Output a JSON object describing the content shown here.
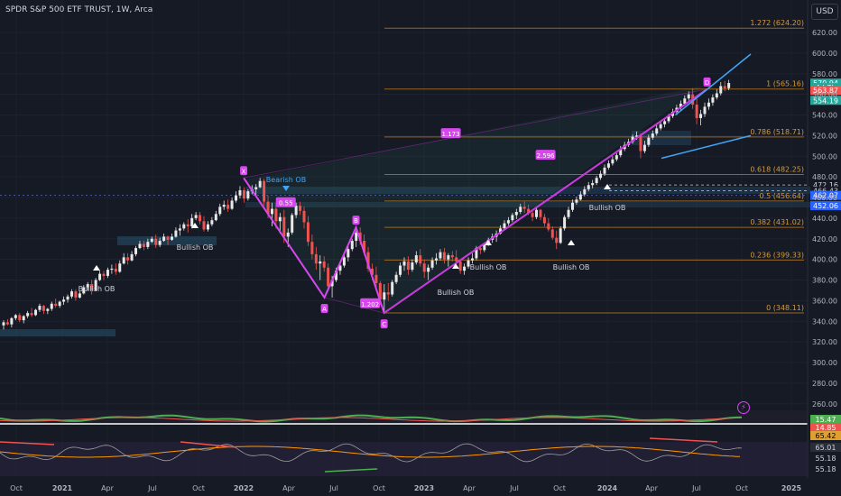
{
  "header": {
    "symbol_title": "SPDR S&P 500 ETF TRUST, 1W, Arca",
    "currency_button": "USD"
  },
  "chart_data": {
    "type": "candlestick",
    "title": "SPDR S&P 500 ETF TRUST, 1W, Arca",
    "price_axis": {
      "ticks": [
        620,
        600,
        580,
        560,
        540,
        520,
        500,
        480,
        460,
        440,
        420,
        400,
        380,
        360,
        340,
        320,
        300,
        280,
        260
      ],
      "tick_labels": [
        "620.00",
        "600.00",
        "580.00",
        "560.00",
        "540.00",
        "520.00",
        "500.00",
        "480.00",
        "460.00",
        "440.00",
        "420.00",
        "400.00",
        "380.00",
        "360.00",
        "340.00",
        "320.00",
        "300.00",
        "280.00",
        "260.00"
      ],
      "ylim": [
        250,
        637
      ]
    },
    "time_axis": {
      "labels": [
        "Oct",
        "2021",
        "Apr",
        "Jul",
        "Oct",
        "2022",
        "Apr",
        "Jul",
        "Oct",
        "2023",
        "Apr",
        "Jul",
        "Oct",
        "2024",
        "Apr",
        "Jul",
        "Oct",
        "2025"
      ],
      "bold_labels": [
        "2021",
        "2022",
        "2023",
        "2024",
        "2025"
      ]
    },
    "fib_levels": [
      {
        "label": "1.272 (624.20)",
        "value": 624.2
      },
      {
        "label": "1 (565.16)",
        "value": 565.16
      },
      {
        "label": "0.786 (518.71)",
        "value": 518.71
      },
      {
        "label": "0.618 (482.25)",
        "value": 482.25
      },
      {
        "label": "0.5 (456.64)",
        "value": 456.64
      },
      {
        "label": "0.382 (431.02)",
        "value": 431.02
      },
      {
        "label": "0.236 (399.33)",
        "value": 399.33
      },
      {
        "label": "0 (348.11)",
        "value": 348.11
      }
    ],
    "price_badges": [
      {
        "label": "570.94",
        "value": 570.94,
        "color": "#26a69a"
      },
      {
        "label": "4d 7h",
        "value": 566.5,
        "color": "#26a69a"
      },
      {
        "label": "563.87",
        "value": 563.87,
        "color": "#ef5350"
      },
      {
        "label": "554.19",
        "value": 554.19,
        "color": "#26a69a"
      },
      {
        "label": "472.16",
        "value": 472.16,
        "color": "#161a25"
      },
      {
        "label": "466.43",
        "value": 466.43,
        "color": "#161a25"
      },
      {
        "label": "462.07",
        "value": 462.07,
        "color": "#2962ff"
      },
      {
        "label": "452.06",
        "value": 452.06,
        "color": "#2962ff"
      }
    ],
    "harmonic_pattern": {
      "points": [
        {
          "label": "X",
          "date": "2022-01-03",
          "value": 479
        },
        {
          "label": "A",
          "date": "2022-06-13",
          "value": 363
        },
        {
          "label": "B",
          "date": "2022-08-15",
          "value": 431
        },
        {
          "label": "C",
          "date": "2022-10-10",
          "value": 348
        },
        {
          "label": "D",
          "date": "2024-07-15",
          "value": 565
        }
      ],
      "ratios": [
        {
          "label": "0.55",
          "date": "2022-03-28",
          "value": 455
        },
        {
          "label": "1.202",
          "date": "2022-09-12",
          "value": 357
        },
        {
          "label": "1.173",
          "date": "2023-02-20",
          "value": 522
        },
        {
          "label": "2.596",
          "date": "2023-08-28",
          "value": 501
        }
      ]
    },
    "annotations": {
      "bullish_ob": [
        "Bullish OB",
        "Bullish OB",
        "Bullish OB",
        "Bullish OB",
        "Bullish OB",
        "Bullish OB",
        "Bullish OB"
      ],
      "bearish_ob": "Bearish OB"
    },
    "candles": [
      [
        0,
        336,
        341,
        332,
        339
      ],
      [
        1,
        339,
        342,
        336,
        337
      ],
      [
        2,
        337,
        344,
        334,
        343
      ],
      [
        3,
        343,
        347,
        341,
        346
      ],
      [
        4,
        346,
        348,
        339,
        341
      ],
      [
        5,
        341,
        346,
        338,
        345
      ],
      [
        6,
        345,
        350,
        343,
        348
      ],
      [
        7,
        348,
        353,
        344,
        346
      ],
      [
        8,
        346,
        352,
        345,
        351
      ],
      [
        9,
        351,
        357,
        349,
        355
      ],
      [
        10,
        355,
        356,
        347,
        350
      ],
      [
        11,
        350,
        353,
        347,
        352
      ],
      [
        12,
        352,
        359,
        350,
        357
      ],
      [
        13,
        357,
        362,
        353,
        355
      ],
      [
        14,
        355,
        360,
        353,
        359
      ],
      [
        15,
        359,
        364,
        356,
        361
      ],
      [
        16,
        361,
        366,
        358,
        364
      ],
      [
        17,
        364,
        371,
        362,
        369
      ],
      [
        18,
        369,
        371,
        360,
        363
      ],
      [
        19,
        363,
        369,
        362,
        367
      ],
      [
        20,
        367,
        375,
        366,
        373
      ],
      [
        21,
        373,
        378,
        370,
        376
      ],
      [
        22,
        376,
        380,
        366,
        370
      ],
      [
        23,
        370,
        382,
        369,
        380
      ],
      [
        24,
        380,
        389,
        379,
        386
      ],
      [
        25,
        386,
        389,
        380,
        384
      ],
      [
        26,
        384,
        392,
        382,
        390
      ],
      [
        27,
        390,
        395,
        386,
        391
      ],
      [
        28,
        391,
        396,
        385,
        388
      ],
      [
        29,
        388,
        399,
        387,
        396
      ],
      [
        30,
        396,
        406,
        395,
        402
      ],
      [
        31,
        402,
        406,
        395,
        399
      ],
      [
        32,
        399,
        408,
        398,
        405
      ],
      [
        33,
        405,
        413,
        403,
        411
      ],
      [
        34,
        411,
        418,
        410,
        415
      ],
      [
        35,
        415,
        418,
        409,
        412
      ],
      [
        36,
        412,
        420,
        410,
        417
      ],
      [
        37,
        417,
        422,
        416,
        420
      ],
      [
        38,
        420,
        424,
        411,
        414
      ],
      [
        39,
        414,
        421,
        412,
        418
      ],
      [
        40,
        418,
        425,
        417,
        422
      ],
      [
        41,
        422,
        423,
        414,
        419
      ],
      [
        42,
        419,
        425,
        418,
        422
      ],
      [
        43,
        422,
        431,
        421,
        428
      ],
      [
        44,
        428,
        434,
        423,
        430
      ],
      [
        45,
        430,
        436,
        428,
        434
      ],
      [
        46,
        434,
        439,
        426,
        432
      ],
      [
        47,
        432,
        444,
        430,
        440
      ],
      [
        48,
        440,
        446,
        438,
        443
      ],
      [
        49,
        443,
        446,
        434,
        437
      ],
      [
        50,
        437,
        442,
        427,
        429
      ],
      [
        51,
        429,
        437,
        427,
        434
      ],
      [
        52,
        434,
        441,
        432,
        438
      ],
      [
        53,
        438,
        447,
        437,
        444
      ],
      [
        54,
        444,
        454,
        442,
        451
      ],
      [
        55,
        451,
        457,
        448,
        453
      ],
      [
        56,
        453,
        458,
        446,
        449
      ],
      [
        57,
        449,
        460,
        448,
        457
      ],
      [
        58,
        457,
        466,
        455,
        462
      ],
      [
        59,
        462,
        471,
        459,
        467
      ],
      [
        60,
        467,
        470,
        455,
        459
      ],
      [
        61,
        459,
        468,
        457,
        466
      ],
      [
        62,
        466,
        472,
        463,
        468
      ],
      [
        63,
        468,
        473,
        462,
        470
      ],
      [
        64,
        470,
        479,
        469,
        476
      ],
      [
        65,
        476,
        478,
        452,
        456
      ],
      [
        66,
        456,
        462,
        440,
        444
      ],
      [
        67,
        444,
        455,
        432,
        449
      ],
      [
        68,
        449,
        455,
        430,
        437
      ],
      [
        69,
        437,
        445,
        425,
        441
      ],
      [
        70,
        441,
        448,
        416,
        422
      ],
      [
        71,
        422,
        430,
        412,
        426
      ],
      [
        72,
        426,
        445,
        424,
        443
      ],
      [
        73,
        443,
        455,
        440,
        452
      ],
      [
        74,
        452,
        456,
        443,
        447
      ],
      [
        75,
        447,
        451,
        430,
        436
      ],
      [
        76,
        436,
        442,
        413,
        417
      ],
      [
        77,
        417,
        424,
        400,
        405
      ],
      [
        78,
        405,
        412,
        390,
        396
      ],
      [
        79,
        396,
        404,
        380,
        398
      ],
      [
        80,
        398,
        403,
        388,
        392
      ],
      [
        81,
        392,
        396,
        370,
        374
      ],
      [
        82,
        374,
        384,
        363,
        380
      ],
      [
        83,
        380,
        392,
        378,
        389
      ],
      [
        84,
        389,
        397,
        385,
        394
      ],
      [
        85,
        394,
        404,
        392,
        402
      ],
      [
        86,
        402,
        413,
        398,
        410
      ],
      [
        87,
        410,
        420,
        408,
        418
      ],
      [
        88,
        418,
        428,
        412,
        426
      ],
      [
        89,
        426,
        431,
        414,
        418
      ],
      [
        90,
        418,
        424,
        404,
        407
      ],
      [
        91,
        407,
        412,
        388,
        391
      ],
      [
        92,
        391,
        396,
        380,
        385
      ],
      [
        93,
        385,
        393,
        373,
        377
      ],
      [
        94,
        377,
        379,
        356,
        361
      ],
      [
        95,
        361,
        376,
        349,
        368
      ],
      [
        96,
        368,
        377,
        360,
        366
      ],
      [
        97,
        366,
        380,
        364,
        378
      ],
      [
        98,
        378,
        388,
        376,
        385
      ],
      [
        99,
        385,
        397,
        383,
        394
      ],
      [
        100,
        394,
        402,
        389,
        398
      ],
      [
        101,
        398,
        403,
        385,
        390
      ],
      [
        102,
        390,
        400,
        388,
        397
      ],
      [
        103,
        397,
        408,
        395,
        404
      ],
      [
        104,
        404,
        410,
        393,
        396
      ],
      [
        105,
        396,
        400,
        382,
        388
      ],
      [
        106,
        388,
        395,
        380,
        392
      ],
      [
        107,
        392,
        402,
        390,
        399
      ],
      [
        108,
        399,
        406,
        395,
        401
      ],
      [
        109,
        401,
        410,
        399,
        407
      ],
      [
        110,
        407,
        411,
        396,
        400
      ],
      [
        111,
        400,
        406,
        393,
        404
      ],
      [
        112,
        404,
        408,
        398,
        402
      ],
      [
        113,
        402,
        409,
        396,
        398
      ],
      [
        114,
        398,
        400,
        386,
        389
      ],
      [
        115,
        389,
        396,
        385,
        393
      ],
      [
        116,
        393,
        402,
        391,
        399
      ],
      [
        117,
        399,
        406,
        396,
        401
      ],
      [
        118,
        401,
        413,
        399,
        411
      ],
      [
        119,
        411,
        414,
        405,
        409
      ],
      [
        120,
        409,
        416,
        407,
        414
      ],
      [
        121,
        414,
        421,
        413,
        419
      ],
      [
        122,
        419,
        425,
        416,
        422
      ],
      [
        123,
        422,
        428,
        417,
        425
      ],
      [
        124,
        425,
        433,
        424,
        430
      ],
      [
        125,
        430,
        438,
        428,
        435
      ],
      [
        126,
        435,
        441,
        433,
        438
      ],
      [
        127,
        438,
        445,
        436,
        443
      ],
      [
        128,
        443,
        449,
        439,
        446
      ],
      [
        129,
        446,
        454,
        444,
        451
      ],
      [
        130,
        451,
        456,
        445,
        449
      ],
      [
        131,
        449,
        453,
        443,
        445
      ],
      [
        132,
        445,
        449,
        437,
        441
      ],
      [
        133,
        441,
        451,
        439,
        448
      ],
      [
        134,
        448,
        449,
        438,
        441
      ],
      [
        135,
        441,
        444,
        432,
        435
      ],
      [
        136,
        435,
        440,
        427,
        429
      ],
      [
        137,
        429,
        432,
        419,
        421
      ],
      [
        138,
        421,
        428,
        410,
        416
      ],
      [
        139,
        416,
        432,
        415,
        430
      ],
      [
        140,
        430,
        443,
        428,
        441
      ],
      [
        141,
        441,
        451,
        439,
        448
      ],
      [
        142,
        448,
        458,
        446,
        455
      ],
      [
        143,
        455,
        461,
        453,
        458
      ],
      [
        144,
        458,
        466,
        457,
        463
      ],
      [
        145,
        463,
        471,
        461,
        468
      ],
      [
        146,
        468,
        475,
        466,
        472
      ],
      [
        147,
        472,
        477,
        469,
        474
      ],
      [
        148,
        474,
        481,
        472,
        479
      ],
      [
        149,
        479,
        486,
        477,
        483
      ],
      [
        150,
        483,
        492,
        481,
        489
      ],
      [
        151,
        489,
        496,
        487,
        493
      ],
      [
        152,
        493,
        500,
        491,
        497
      ],
      [
        153,
        497,
        503,
        495,
        501
      ],
      [
        154,
        501,
        510,
        499,
        507
      ],
      [
        155,
        507,
        514,
        505,
        511
      ],
      [
        156,
        511,
        517,
        509,
        514
      ],
      [
        157,
        514,
        521,
        512,
        519
      ],
      [
        158,
        519,
        524,
        516,
        520
      ],
      [
        159,
        520,
        522,
        498,
        505
      ],
      [
        160,
        505,
        515,
        503,
        511
      ],
      [
        161,
        511,
        521,
        509,
        518
      ],
      [
        162,
        518,
        525,
        516,
        522
      ],
      [
        163,
        522,
        530,
        520,
        527
      ],
      [
        164,
        527,
        534,
        525,
        531
      ],
      [
        165,
        531,
        537,
        528,
        534
      ],
      [
        166,
        534,
        541,
        532,
        539
      ],
      [
        167,
        539,
        546,
        537,
        543
      ],
      [
        168,
        543,
        550,
        540,
        547
      ],
      [
        169,
        547,
        554,
        545,
        551
      ],
      [
        170,
        551,
        559,
        549,
        556
      ],
      [
        171,
        556,
        563,
        554,
        560
      ],
      [
        172,
        560,
        566,
        546,
        550
      ],
      [
        173,
        550,
        556,
        531,
        537
      ],
      [
        174,
        537,
        545,
        530,
        541
      ],
      [
        175,
        541,
        552,
        538,
        548
      ],
      [
        176,
        548,
        556,
        545,
        552
      ],
      [
        177,
        552,
        560,
        549,
        557
      ],
      [
        178,
        557,
        565,
        555,
        561
      ],
      [
        179,
        561,
        572,
        559,
        568
      ],
      [
        180,
        568,
        573,
        563,
        566
      ],
      [
        181,
        566,
        574,
        564,
        571
      ]
    ]
  }
}
